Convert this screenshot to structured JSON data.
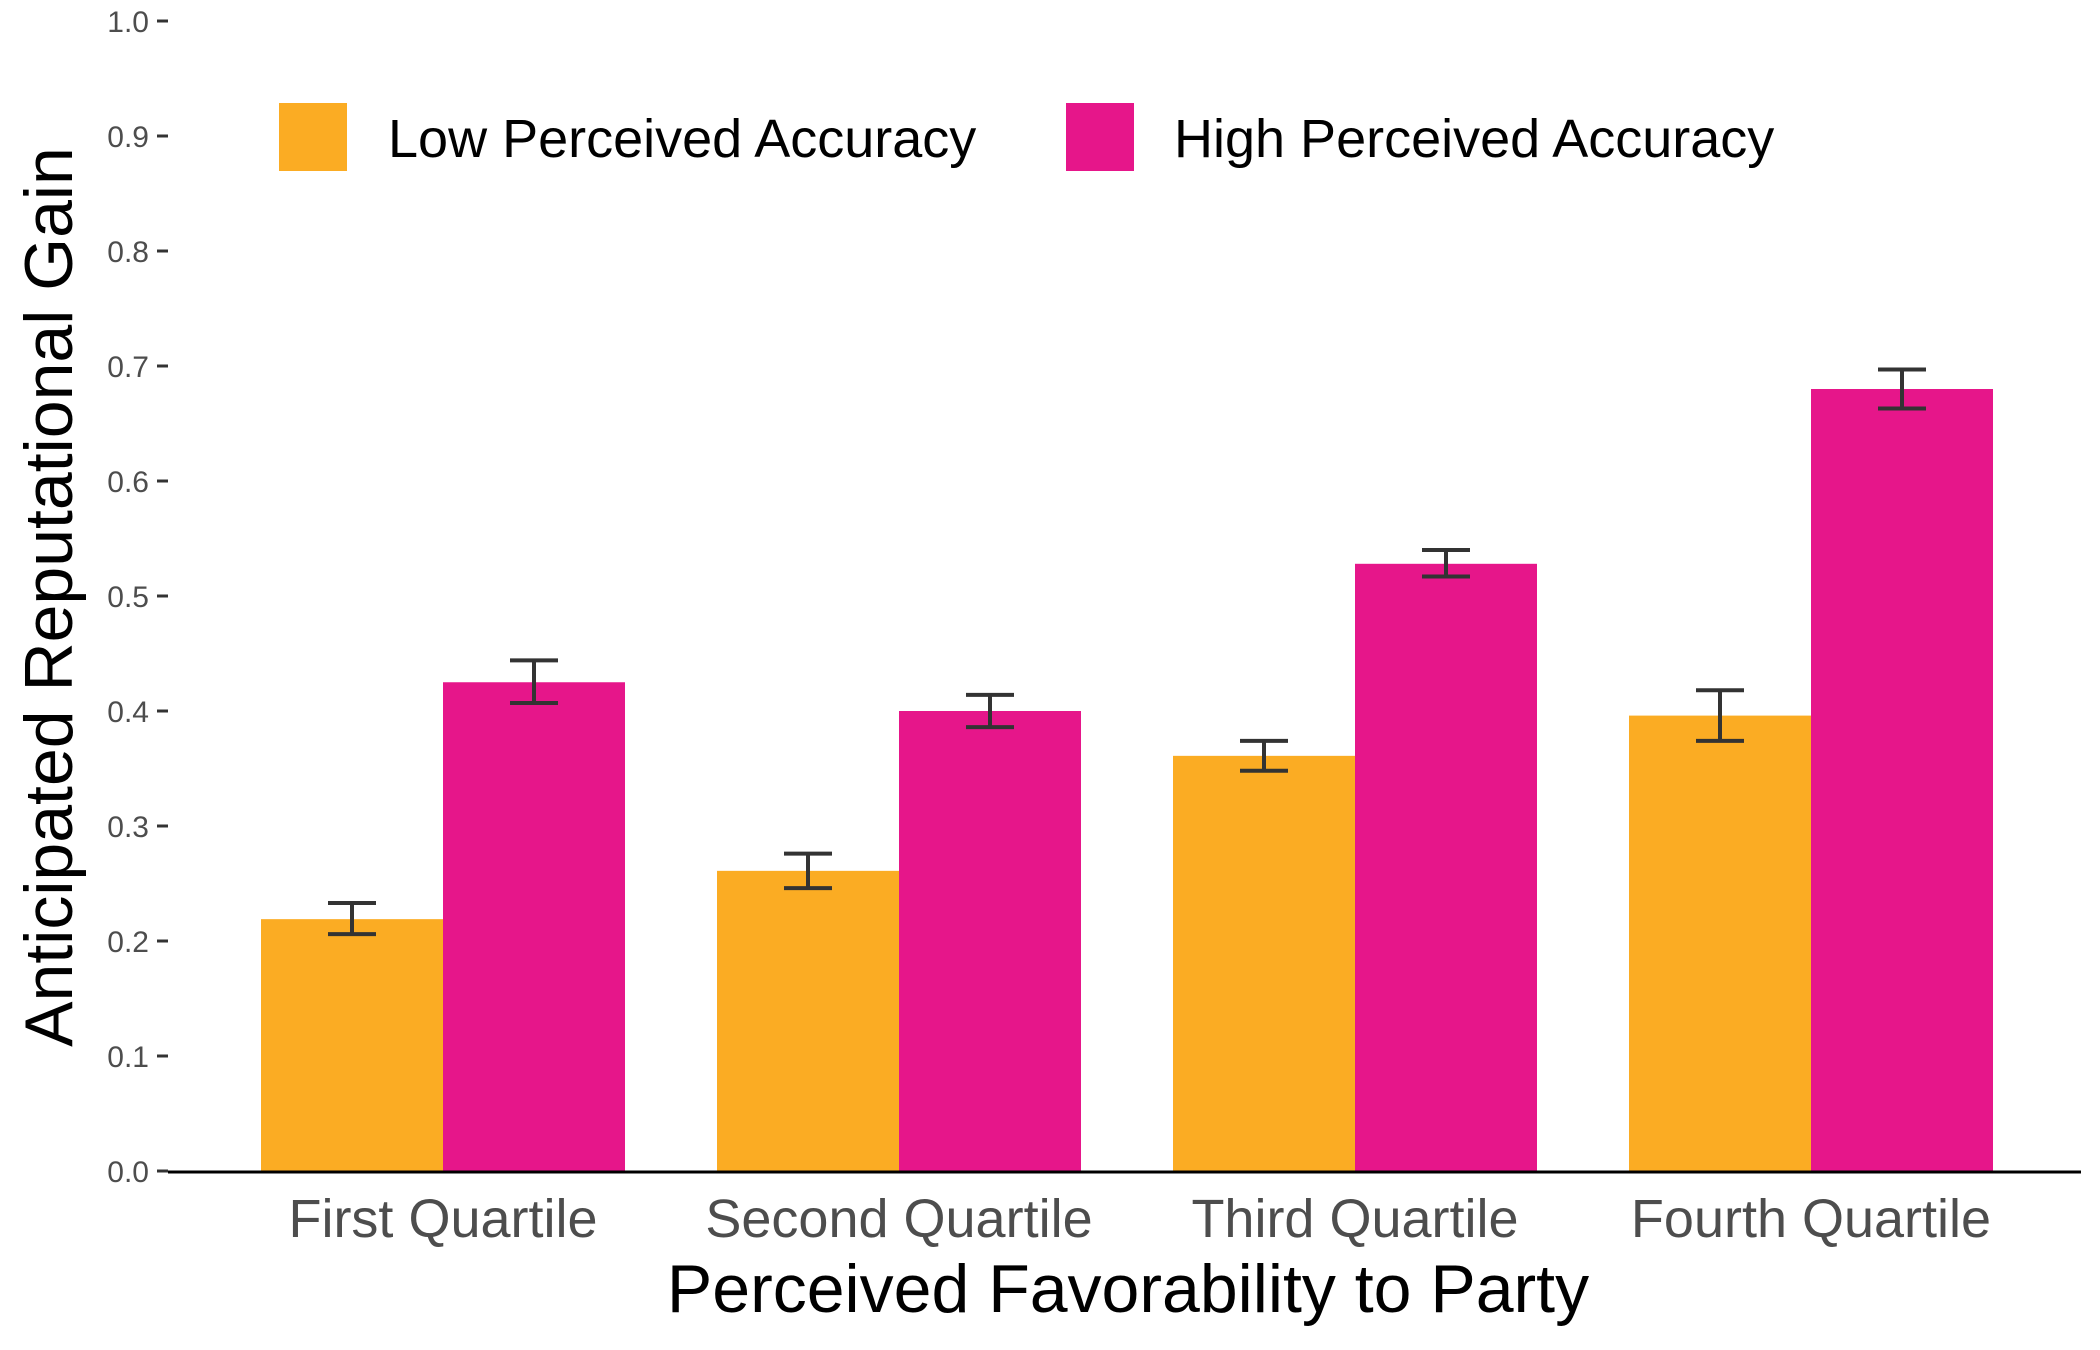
{
  "chart_data": {
    "type": "bar",
    "title": "",
    "xlabel": "Perceived Favorability to Party",
    "ylabel": "Anticipated Reputational Gain",
    "categories": [
      "First Quartile",
      "Second Quartile",
      "Third Quartile",
      "Fourth Quartile"
    ],
    "ylim": [
      0,
      1.0
    ],
    "yticks": [
      0.0,
      0.1,
      0.2,
      0.3,
      0.4,
      0.5,
      0.6,
      0.7,
      0.8,
      0.9,
      1.0
    ],
    "ytick_labels": [
      "0.0",
      "0.1",
      "0.2",
      "0.3",
      "0.4",
      "0.5",
      "0.6",
      "0.7",
      "0.8",
      "0.9",
      "1.0"
    ],
    "grid": false,
    "legend_position": "top-left",
    "series": [
      {
        "name": "Low Perceived Accuracy",
        "color": "#fbac23",
        "values": [
          0.219,
          0.261,
          0.361,
          0.396
        ],
        "error_low": [
          0.206,
          0.246,
          0.348,
          0.374
        ],
        "error_high": [
          0.233,
          0.276,
          0.374,
          0.418
        ]
      },
      {
        "name": "High Perceived Accuracy",
        "color": "#e6168a",
        "values": [
          0.425,
          0.4,
          0.528,
          0.68
        ],
        "error_low": [
          0.407,
          0.386,
          0.517,
          0.663
        ],
        "error_high": [
          0.444,
          0.414,
          0.54,
          0.697
        ]
      }
    ]
  }
}
